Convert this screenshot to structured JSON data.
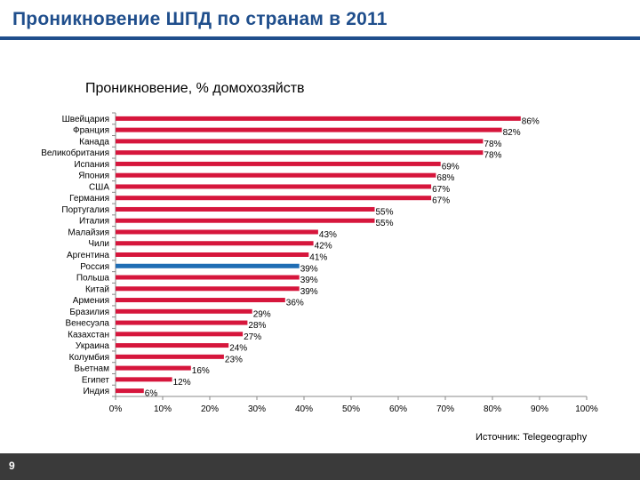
{
  "slide": {
    "title": "Проникновение ШПД по странам в 2011",
    "source": "Источник: Telegeography",
    "page_number": "9",
    "accent_color": "#1f4e8c",
    "footer_color": "#3a3a3a"
  },
  "chart_data": {
    "type": "bar",
    "orientation": "horizontal",
    "title": "Проникновение, % домохозяйств",
    "xlabel": "",
    "ylabel": "",
    "xlim": [
      0,
      100
    ],
    "x_ticks": [
      "0%",
      "10%",
      "20%",
      "30%",
      "40%",
      "50%",
      "60%",
      "70%",
      "80%",
      "90%",
      "100%"
    ],
    "grid": false,
    "bar_color": "#d6163c",
    "highlight_color": "#1f6db4",
    "highlight_category": "Россия",
    "categories": [
      "Швейцария",
      "Франция",
      "Канада",
      "Великобритания",
      "Испания",
      "Япония",
      "США",
      "Германия",
      "Португалия",
      "Италия",
      "Малайзия",
      "Чили",
      "Аргентина",
      "Россия",
      "Польша",
      "Китай",
      "Армения",
      "Бразилия",
      "Венесуэла",
      "Казахстан",
      "Украина",
      "Колумбия",
      "Вьетнам",
      "Египет",
      "Индия"
    ],
    "values": [
      86,
      82,
      78,
      78,
      69,
      68,
      67,
      67,
      55,
      55,
      43,
      42,
      41,
      39,
      39,
      39,
      36,
      29,
      28,
      27,
      24,
      23,
      16,
      12,
      6
    ],
    "value_labels": [
      "86%",
      "82%",
      "78%",
      "78%",
      "69%",
      "68%",
      "67%",
      "67%",
      "55%",
      "55%",
      "43%",
      "42%",
      "41%",
      "39%",
      "39%",
      "39%",
      "36%",
      "29%",
      "28%",
      "27%",
      "24%",
      "23%",
      "16%",
      "12%",
      "6%"
    ]
  }
}
